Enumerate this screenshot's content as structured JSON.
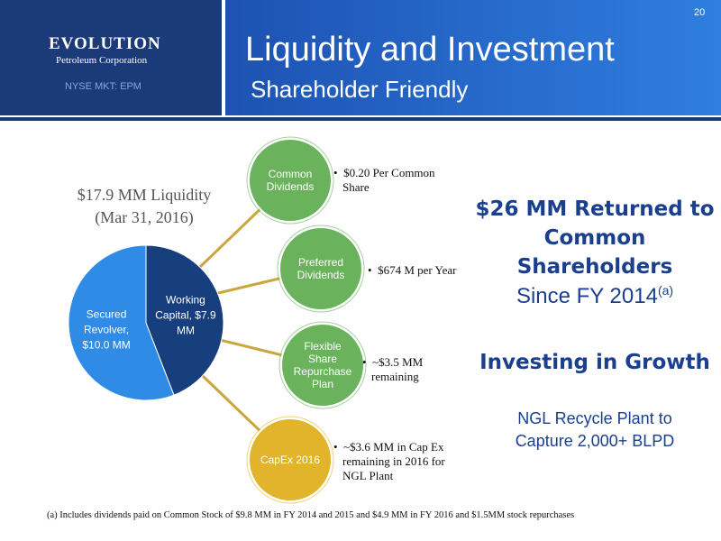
{
  "header": {
    "page_number": "20",
    "logo_name": "EVOLUTION",
    "logo_subtitle": "Petroleum Corporation",
    "ticker": "NYSE MKT: EPM",
    "title": "Liquidity and Investment",
    "subtitle": "Shareholder Friendly"
  },
  "chart_data": {
    "type": "pie",
    "title": "$17.9 MM Liquidity (Mar 31, 2016)",
    "values": [
      7.9,
      10.0
    ],
    "value_labels": [
      "Working Capital, $7.9 MM",
      "Secured Revolver, $10.0 MM"
    ],
    "colors": [
      "#173f7e",
      "#2f8be6"
    ]
  },
  "uses": [
    {
      "label": "Common Dividends",
      "color": "#6ab35c",
      "bullet": "$0.20 Per Common Share"
    },
    {
      "label": "Preferred Dividends",
      "color": "#6ab35c",
      "bullet": "$674 M per Year"
    },
    {
      "label": "Flexible Share Repurchase Plan",
      "color": "#6ab35c",
      "bullet": "~$3.5 MM remaining"
    },
    {
      "label": "CapEx 2016",
      "color": "#e1b42b",
      "bullet": "~$3.6 MM in Cap Ex remaining in 2016 for NGL Plant"
    }
  ],
  "highlights": {
    "returned_headline": "$26 MM Returned to Common Shareholders",
    "returned_detail": "Since FY 2014",
    "returned_note": "(a)",
    "investing_headline": "Investing in Growth",
    "investing_detail": "NGL Recycle Plant to Capture 2,000+ BLPD"
  },
  "footnote": "(a)  Includes dividends paid on Common Stock of $9.8 MM in FY 2014 and 2015 and $4.9 MM in FY 2016 and $1.5MM stock repurchases"
}
